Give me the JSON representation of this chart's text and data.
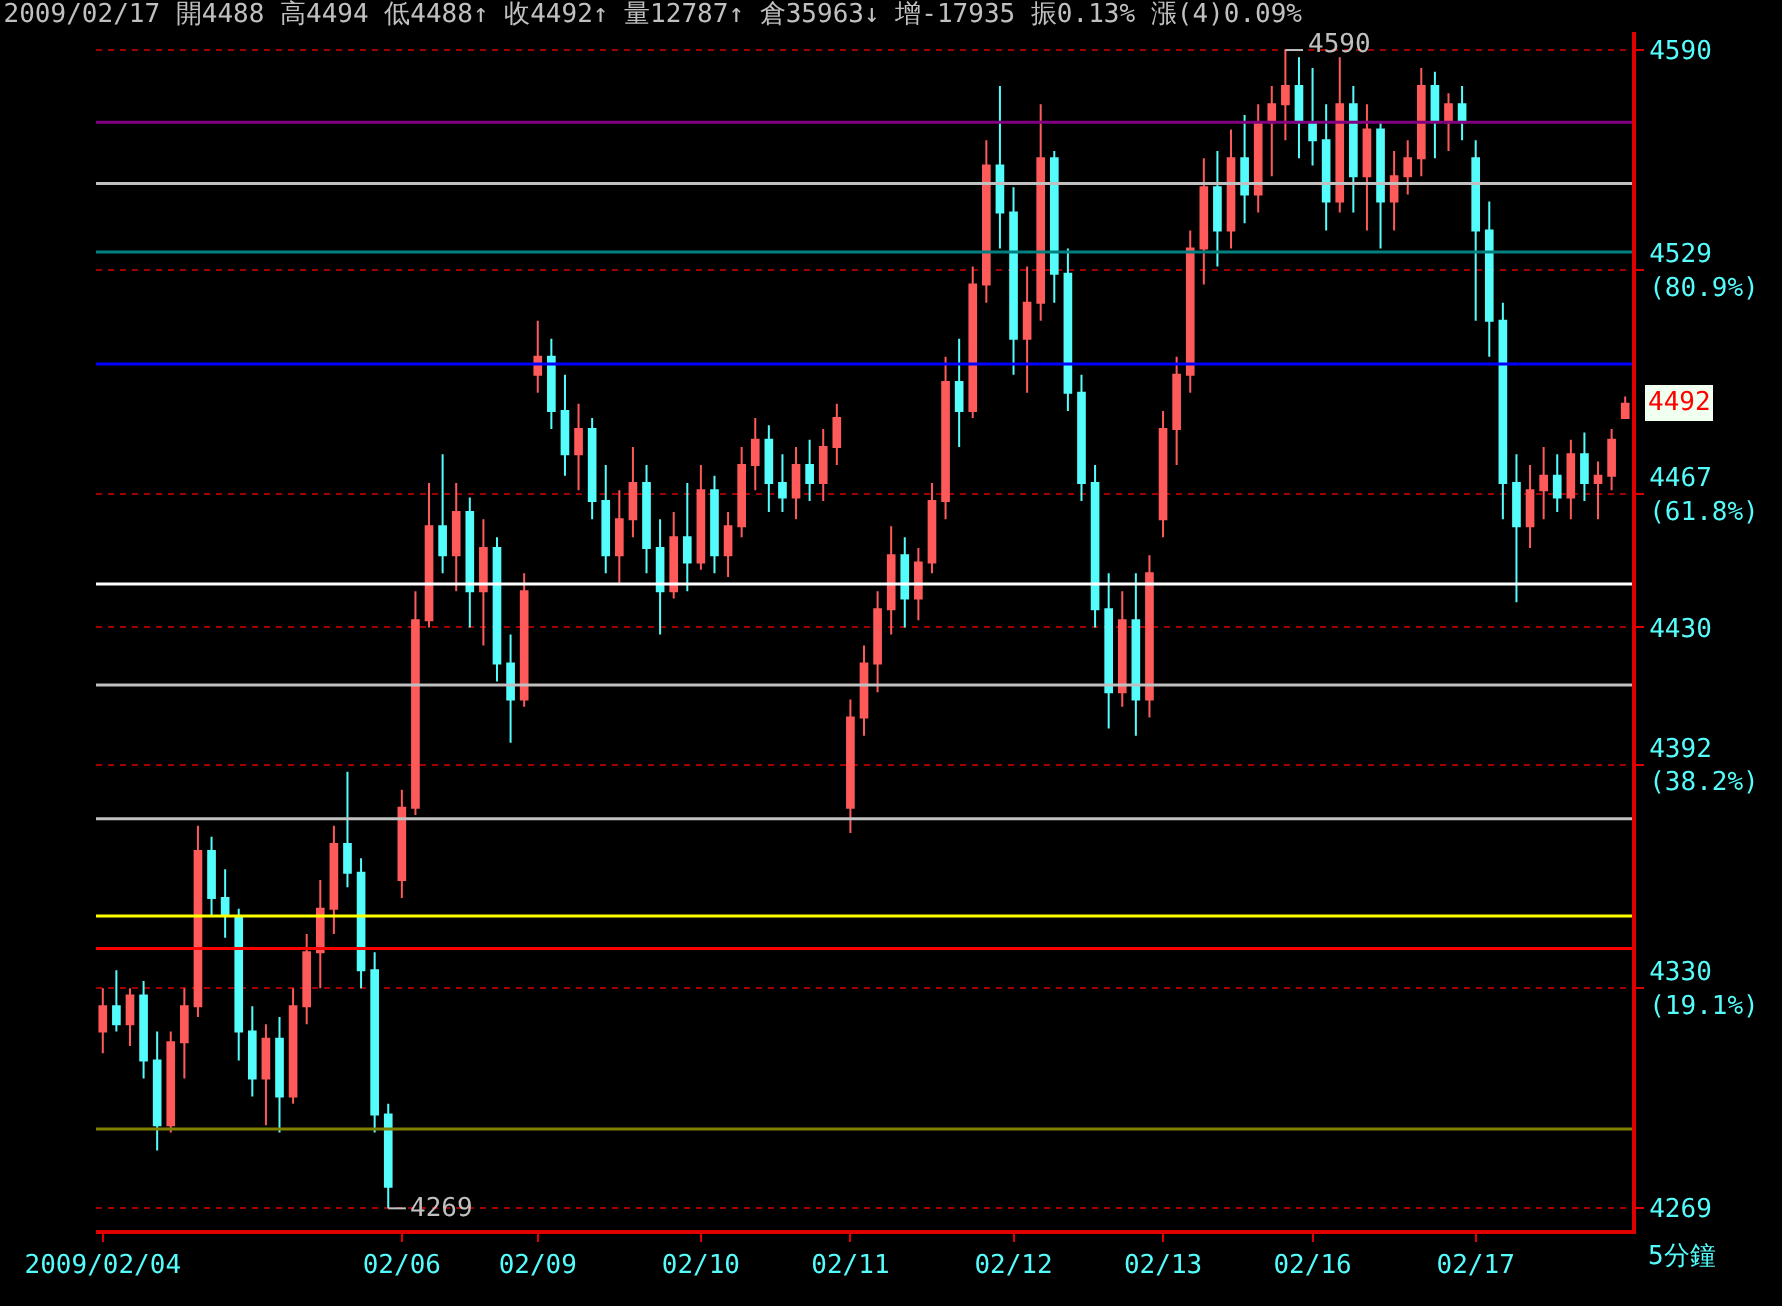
{
  "chart_data": {
    "type": "candlestick",
    "title": "2009/02/17 開4488 高4494 低4488↑ 收4492↑ 量12787↑ 倉35963↓ 增-17935 振0.13% 漲(4)0.09%",
    "categories": [
      "2009/02/04",
      null,
      null,
      null,
      null,
      null,
      null,
      null,
      null,
      null,
      null,
      null,
      null,
      null,
      null,
      null,
      null,
      null,
      null,
      null,
      null,
      null,
      "02/06",
      null,
      null,
      null,
      null,
      null,
      null,
      null,
      null,
      null,
      "02/09",
      null,
      null,
      null,
      null,
      null,
      null,
      null,
      null,
      null,
      null,
      null,
      "02/10",
      null,
      null,
      null,
      null,
      null,
      null,
      null,
      null,
      null,
      null,
      "02/11",
      null,
      null,
      null,
      null,
      null,
      null,
      null,
      null,
      null,
      null,
      null,
      "02/12",
      null,
      null,
      null,
      null,
      null,
      null,
      null,
      null,
      null,
      null,
      "02/13",
      null,
      null,
      null,
      null,
      null,
      null,
      null,
      null,
      null,
      null,
      "02/16",
      null,
      null,
      null,
      null,
      null,
      null,
      null,
      null,
      null,
      null,
      null,
      "02/17",
      null,
      null,
      null,
      null,
      null,
      null,
      null,
      null,
      null,
      null,
      null
    ],
    "ohlc": [
      [
        4318,
        4330,
        4312,
        4325
      ],
      [
        4325,
        4335,
        4318,
        4320
      ],
      [
        4320,
        4330,
        4314,
        4328
      ],
      [
        4328,
        4332,
        4305,
        4310
      ],
      [
        4310,
        4318,
        4285,
        4292
      ],
      [
        4292,
        4318,
        4290,
        4315
      ],
      [
        4315,
        4330,
        4305,
        4325
      ],
      [
        4325,
        4375,
        4322,
        4368
      ],
      [
        4368,
        4372,
        4350,
        4355
      ],
      [
        4355,
        4363,
        4344,
        4350
      ],
      [
        4350,
        4352,
        4310,
        4318
      ],
      [
        4318,
        4325,
        4300,
        4305
      ],
      [
        4305,
        4320,
        4292,
        4316
      ],
      [
        4316,
        4322,
        4290,
        4300
      ],
      [
        4300,
        4330,
        4298,
        4325
      ],
      [
        4325,
        4345,
        4320,
        4340
      ],
      [
        4340,
        4360,
        4330,
        4352
      ],
      [
        4352,
        4375,
        4345,
        4370
      ],
      [
        4370,
        4390,
        4358,
        4362
      ],
      [
        4362,
        4366,
        4330,
        4335
      ],
      [
        4335,
        4340,
        4290,
        4295
      ],
      [
        4295,
        4298,
        4269,
        4275
      ],
      [
        4360,
        4385,
        4355,
        4380
      ],
      [
        4380,
        4440,
        4378,
        4432
      ],
      [
        4432,
        4470,
        4430,
        4458
      ],
      [
        4458,
        4478,
        4445,
        4450
      ],
      [
        4450,
        4470,
        4440,
        4462
      ],
      [
        4462,
        4466,
        4430,
        4440
      ],
      [
        4440,
        4460,
        4425,
        4452
      ],
      [
        4452,
        4455,
        4415,
        4420
      ],
      [
        4420,
        4428,
        4398,
        4410
      ],
      [
        4410,
        4445,
        4408,
        4440
      ],
      [
        4500,
        4515,
        4495,
        4505
      ],
      [
        4505,
        4510,
        4485,
        4490
      ],
      [
        4490,
        4500,
        4472,
        4478
      ],
      [
        4478,
        4492,
        4468,
        4485
      ],
      [
        4485,
        4488,
        4460,
        4465
      ],
      [
        4465,
        4475,
        4445,
        4450
      ],
      [
        4450,
        4468,
        4442,
        4460
      ],
      [
        4460,
        4480,
        4455,
        4470
      ],
      [
        4470,
        4475,
        4445,
        4452
      ],
      [
        4452,
        4460,
        4428,
        4440
      ],
      [
        4440,
        4462,
        4438,
        4455
      ],
      [
        4455,
        4470,
        4440,
        4448
      ],
      [
        4448,
        4475,
        4446,
        4468
      ],
      [
        4468,
        4472,
        4445,
        4450
      ],
      [
        4450,
        4462,
        4444,
        4458
      ],
      [
        4458,
        4480,
        4455,
        4475
      ],
      [
        4475,
        4488,
        4468,
        4482
      ],
      [
        4482,
        4486,
        4462,
        4470
      ],
      [
        4470,
        4478,
        4462,
        4466
      ],
      [
        4466,
        4480,
        4460,
        4475
      ],
      [
        4475,
        4482,
        4465,
        4470
      ],
      [
        4470,
        4485,
        4465,
        4480
      ],
      [
        4480,
        4492,
        4475,
        4488
      ],
      [
        4380,
        4410,
        4373,
        4405
      ],
      [
        4405,
        4425,
        4400,
        4420
      ],
      [
        4420,
        4440,
        4412,
        4435
      ],
      [
        4435,
        4458,
        4428,
        4450
      ],
      [
        4450,
        4455,
        4430,
        4438
      ],
      [
        4438,
        4452,
        4432,
        4448
      ],
      [
        4448,
        4470,
        4445,
        4465
      ],
      [
        4465,
        4505,
        4460,
        4498
      ],
      [
        4498,
        4510,
        4480,
        4490
      ],
      [
        4490,
        4530,
        4488,
        4525
      ],
      [
        4525,
        4565,
        4520,
        4558
      ],
      [
        4558,
        4580,
        4535,
        4545
      ],
      [
        4545,
        4552,
        4500,
        4510
      ],
      [
        4510,
        4530,
        4495,
        4520
      ],
      [
        4520,
        4575,
        4515,
        4560
      ],
      [
        4560,
        4562,
        4520,
        4528
      ],
      [
        4528,
        4535,
        4490,
        4495
      ],
      [
        4495,
        4500,
        4465,
        4470
      ],
      [
        4470,
        4475,
        4430,
        4435
      ],
      [
        4435,
        4445,
        4402,
        4412
      ],
      [
        4412,
        4440,
        4408,
        4432
      ],
      [
        4432,
        4445,
        4400,
        4410
      ],
      [
        4410,
        4450,
        4405,
        4445
      ],
      [
        4460,
        4490,
        4455,
        4485
      ],
      [
        4485,
        4505,
        4475,
        4500
      ],
      [
        4500,
        4540,
        4495,
        4535
      ],
      [
        4535,
        4560,
        4525,
        4552
      ],
      [
        4552,
        4562,
        4530,
        4540
      ],
      [
        4540,
        4568,
        4535,
        4560
      ],
      [
        4560,
        4572,
        4542,
        4550
      ],
      [
        4550,
        4575,
        4545,
        4570
      ],
      [
        4570,
        4580,
        4555,
        4575
      ],
      [
        4575,
        4590,
        4565,
        4580
      ],
      [
        4580,
        4588,
        4560,
        4570
      ],
      [
        4570,
        4585,
        4558,
        4565
      ],
      [
        4565,
        4575,
        4540,
        4548
      ],
      [
        4548,
        4588,
        4545,
        4575
      ],
      [
        4575,
        4580,
        4545,
        4555
      ],
      [
        4555,
        4575,
        4540,
        4568
      ],
      [
        4568,
        4570,
        4535,
        4548
      ],
      [
        4548,
        4562,
        4540,
        4555
      ],
      [
        4555,
        4565,
        4550,
        4560
      ],
      [
        4560,
        4585,
        4555,
        4580
      ],
      [
        4580,
        4584,
        4560,
        4570
      ],
      [
        4570,
        4578,
        4562,
        4575
      ],
      [
        4575,
        4580,
        4565,
        4570
      ],
      [
        4560,
        4565,
        4515,
        4540
      ],
      [
        4540,
        4548,
        4505,
        4515
      ],
      [
        4515,
        4520,
        4460,
        4470
      ],
      [
        4470,
        4478,
        4437,
        4458
      ],
      [
        4458,
        4475,
        4452,
        4468
      ],
      [
        4468,
        4480,
        4460,
        4472
      ],
      [
        4472,
        4478,
        4462,
        4466
      ],
      [
        4466,
        4482,
        4460,
        4478
      ],
      [
        4478,
        4484,
        4465,
        4470
      ],
      [
        4470,
        4476,
        4460,
        4472
      ],
      [
        4472,
        4485,
        4468,
        4482
      ],
      [
        4488,
        4494,
        4488,
        4492
      ]
    ],
    "xlabel": "5分鐘",
    "ylim": [
      4263,
      4595
    ],
    "yticks": [
      4269,
      {
        "value": 4330,
        "label": "4330\n(19.1%)"
      },
      {
        "value": 4392,
        "label": "4392\n(38.2%)"
      },
      4430,
      {
        "value": 4467,
        "label": "4467\n(61.8%)"
      },
      {
        "value": 4529,
        "label": "4529\n(80.9%)"
      },
      4590
    ],
    "grid": "y",
    "legend": false,
    "ref_lines": [
      {
        "axis": "y",
        "value": 4570,
        "color": "#800080"
      },
      {
        "axis": "y",
        "value": 4553,
        "color": "#c0c0c0"
      },
      {
        "axis": "y",
        "value": 4534,
        "color": "#008080"
      },
      {
        "axis": "y",
        "value": 4503,
        "color": "#0000ff"
      },
      {
        "axis": "y",
        "value": 4442,
        "color": "#ffffff"
      },
      {
        "axis": "y",
        "value": 4414,
        "color": "#c0c0c0"
      },
      {
        "axis": "y",
        "value": 4377,
        "color": "#c0c0c0"
      },
      {
        "axis": "y",
        "value": 4350,
        "color": "#ffff00"
      },
      {
        "axis": "y",
        "value": 4341,
        "color": "#ff0000"
      },
      {
        "axis": "y",
        "value": 4291,
        "color": "#808000"
      }
    ],
    "annotations": [
      {
        "text": "4590",
        "y": 4590
      },
      "4269",
      "4492"
    ]
  }
}
